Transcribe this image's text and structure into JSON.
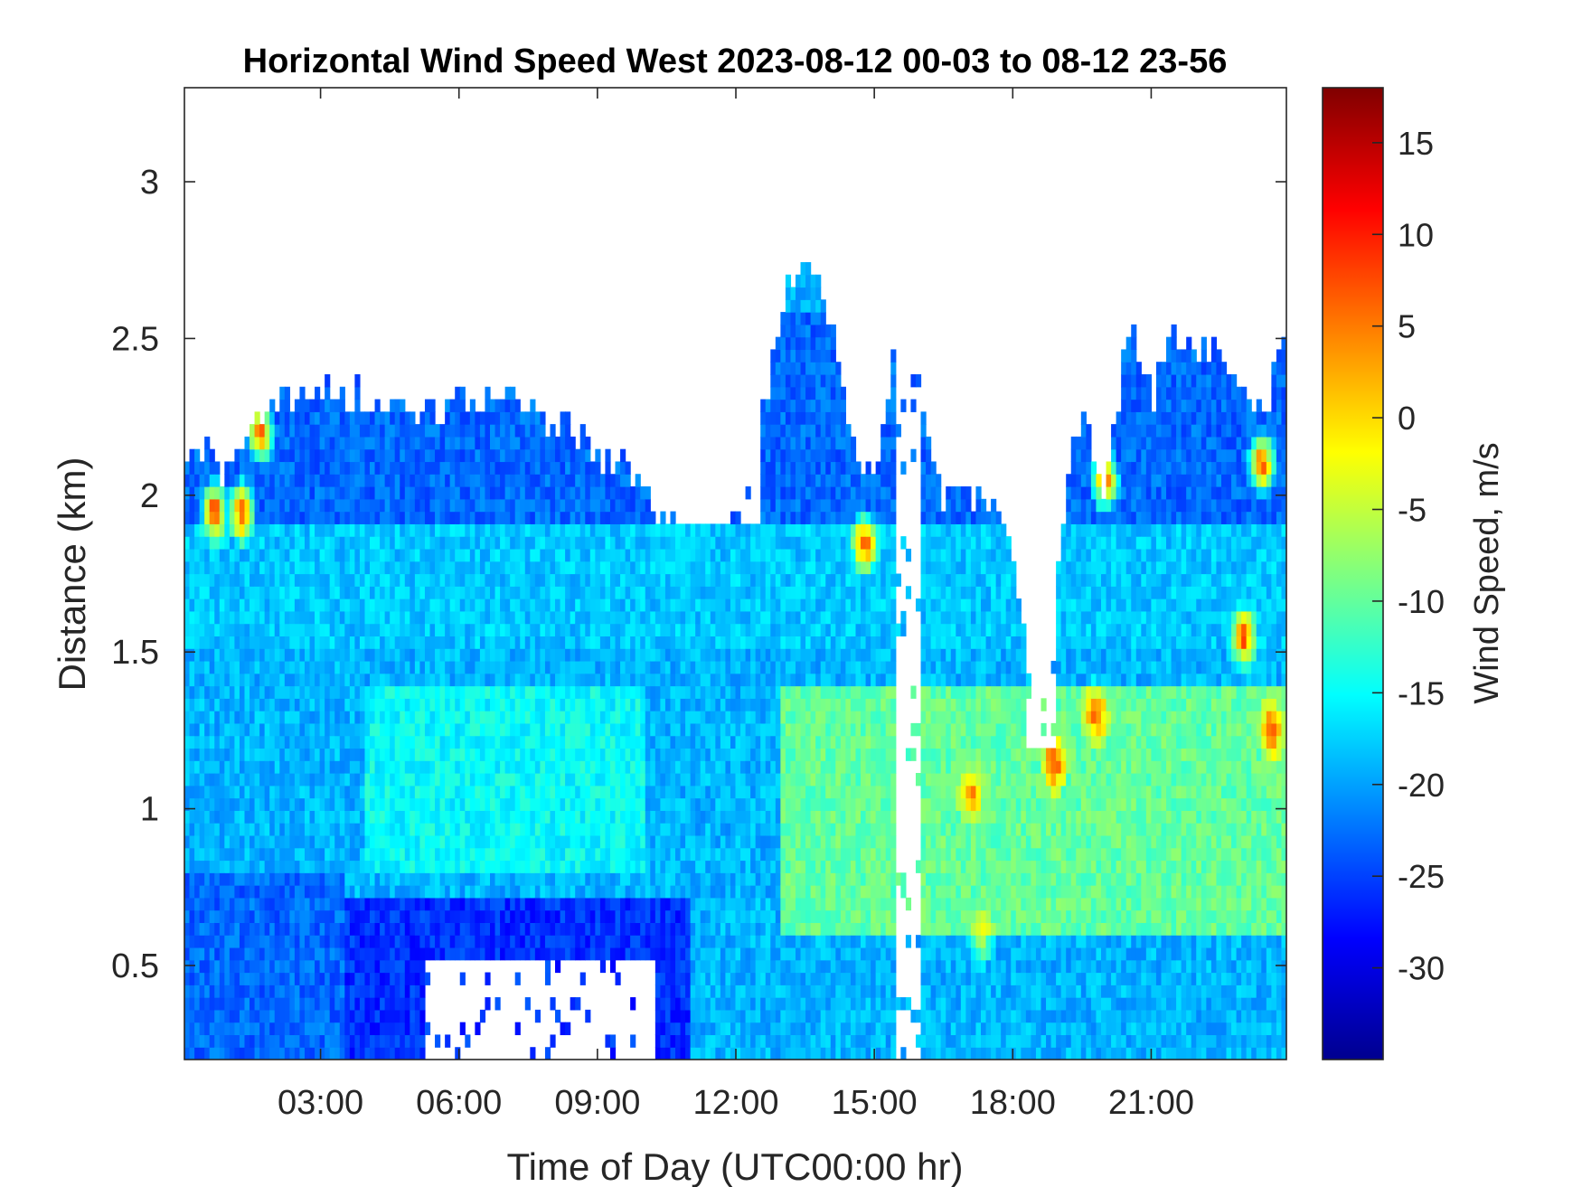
{
  "chart_data": {
    "type": "heatmap",
    "title": "Horizontal Wind Speed West 2023-08-12 00-03 to 08-12 23-56",
    "xlabel": "Time of Day (UTC00:00 hr)",
    "ylabel": "Distance (km)",
    "colorbar_label": "Wind Speed, m/s",
    "colormap": "jet",
    "xlim_hours": [
      0.05,
      23.93
    ],
    "ylim": [
      0.2,
      3.3
    ],
    "clim": [
      -35,
      18
    ],
    "x_ticks": [
      {
        "value": 3,
        "label": "03:00"
      },
      {
        "value": 6,
        "label": "06:00"
      },
      {
        "value": 9,
        "label": "09:00"
      },
      {
        "value": 12,
        "label": "12:00"
      },
      {
        "value": 15,
        "label": "15:00"
      },
      {
        "value": 18,
        "label": "18:00"
      },
      {
        "value": 21,
        "label": "21:00"
      }
    ],
    "y_ticks": [
      {
        "value": 0.5,
        "label": "0.5"
      },
      {
        "value": 1,
        "label": "1"
      },
      {
        "value": 1.5,
        "label": "1.5"
      },
      {
        "value": 2,
        "label": "2"
      },
      {
        "value": 2.5,
        "label": "2.5"
      },
      {
        "value": 3,
        "label": "3"
      }
    ],
    "colorbar_ticks": [
      {
        "value": 15,
        "label": "15"
      },
      {
        "value": 10,
        "label": "10"
      },
      {
        "value": 5,
        "label": "5"
      },
      {
        "value": 0,
        "label": "0"
      },
      {
        "value": -5,
        "label": "-5"
      },
      {
        "value": -10,
        "label": "-10"
      },
      {
        "value": -15,
        "label": "-15"
      },
      {
        "value": -20,
        "label": "-20"
      },
      {
        "value": -25,
        "label": "-25"
      },
      {
        "value": -30,
        "label": "-30"
      }
    ],
    "data_top_km": {
      "hours": [
        0.05,
        0.5,
        1.0,
        1.5,
        2.0,
        2.6,
        3.0,
        4.0,
        5.0,
        6.0,
        7.0,
        7.5,
        8.5,
        9.5,
        10.5,
        11.0,
        12.0,
        12.5,
        13.0,
        13.5,
        14.0,
        14.5,
        15.0,
        15.5,
        16.0,
        16.5,
        17.0,
        17.5,
        18.0,
        18.3,
        18.6,
        19.0,
        19.5,
        20.0,
        20.5,
        21.0,
        21.5,
        22.0,
        22.5,
        23.0,
        23.5,
        23.93
      ],
      "km": [
        2.13,
        2.12,
        2.05,
        2.25,
        2.3,
        2.3,
        2.35,
        2.3,
        2.25,
        2.3,
        2.3,
        2.3,
        2.2,
        2.1,
        1.9,
        1.95,
        2.0,
        2.2,
        2.6,
        2.75,
        2.6,
        2.2,
        2.05,
        2.5,
        2.3,
        2.0,
        2.0,
        2.0,
        1.8,
        1.5,
        1.2,
        1.8,
        2.3,
        2.0,
        2.55,
        2.3,
        2.5,
        2.45,
        2.5,
        2.3,
        2.3,
        2.6
      ]
    },
    "data_gaps": [
      {
        "hours": [
          5.3,
          10.3
        ],
        "km": [
          0.2,
          0.5
        ]
      },
      {
        "hours": [
          10.5,
          12.5
        ],
        "km": [
          1.9,
          2.3
        ]
      },
      {
        "hours": [
          15.5,
          16.0
        ],
        "km": [
          0.2,
          3.3
        ]
      },
      {
        "hours": [
          18.3,
          18.9
        ],
        "km": [
          1.2,
          1.8
        ]
      }
    ],
    "speed_regions_mps": [
      {
        "hours": [
          0.05,
          24
        ],
        "km": [
          1.5,
          1.9
        ],
        "value": -18
      },
      {
        "hours": [
          0.05,
          3.5
        ],
        "km": [
          0.2,
          0.8
        ],
        "value": -23
      },
      {
        "hours": [
          3.5,
          11.0
        ],
        "km": [
          0.2,
          0.7
        ],
        "value": -26
      },
      {
        "hours": [
          4.0,
          10.0
        ],
        "km": [
          0.8,
          1.4
        ],
        "value": -15
      },
      {
        "hours": [
          13.0,
          24
        ],
        "km": [
          0.6,
          1.4
        ],
        "value": -10
      },
      {
        "hours": [
          0.05,
          24
        ],
        "km": [
          1.9,
          2.6
        ],
        "value": -23
      }
    ],
    "hot_spots_mps": [
      {
        "hour": 0.7,
        "km": 1.95,
        "value": 12
      },
      {
        "hour": 1.3,
        "km": 1.95,
        "value": 12
      },
      {
        "hour": 1.7,
        "km": 2.2,
        "value": 10
      },
      {
        "hour": 14.8,
        "km": 1.85,
        "value": 10
      },
      {
        "hour": 17.3,
        "km": 0.6,
        "value": -2
      },
      {
        "hour": 17.1,
        "km": 1.05,
        "value": 5
      },
      {
        "hour": 18.9,
        "km": 1.15,
        "value": 10
      },
      {
        "hour": 19.8,
        "km": 1.3,
        "value": 8
      },
      {
        "hour": 20.0,
        "km": 2.05,
        "value": 10
      },
      {
        "hour": 23.0,
        "km": 1.55,
        "value": 10
      },
      {
        "hour": 23.6,
        "km": 1.25,
        "value": 10
      },
      {
        "hour": 23.4,
        "km": 2.1,
        "value": 12
      }
    ]
  }
}
